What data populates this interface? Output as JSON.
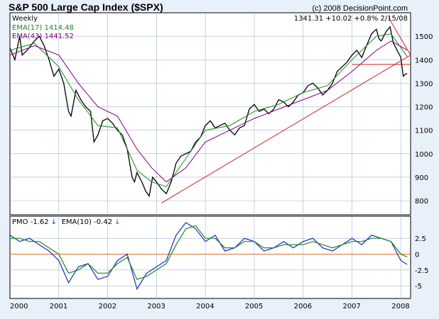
{
  "chart_data": [
    {
      "type": "line",
      "title": "S&P 500 Large Cap Index ($SPX)",
      "copyright": "(c) 2008 DecisionPoint.com",
      "period_label": "Weekly",
      "last_quote": "1341.31 +10.02 +0.8% 2/15/08",
      "legend": [
        {
          "name": "EMA(17) 1414.48",
          "color": "#1a8a1a"
        },
        {
          "name": "EMA(43) 1441.52",
          "color": "#800080"
        }
      ],
      "ylim": [
        740,
        1600
      ],
      "yticks": [
        800,
        900,
        1000,
        1100,
        1200,
        1300,
        1400,
        1500
      ],
      "xlim": [
        2000.0,
        2008.2
      ],
      "series": [
        {
          "name": "SPX",
          "color": "#000000",
          "x": [
            2000.0,
            2000.1,
            2000.2,
            2000.25,
            2000.35,
            2000.5,
            2000.6,
            2000.7,
            2000.8,
            2000.9,
            2001.0,
            2001.1,
            2001.2,
            2001.25,
            2001.35,
            2001.45,
            2001.55,
            2001.65,
            2001.72,
            2001.8,
            2001.9,
            2002.0,
            2002.1,
            2002.2,
            2002.3,
            2002.4,
            2002.5,
            2002.55,
            2002.6,
            2002.7,
            2002.78,
            2002.85,
            2002.92,
            2003.0,
            2003.1,
            2003.2,
            2003.3,
            2003.4,
            2003.5,
            2003.6,
            2003.7,
            2003.8,
            2003.9,
            2004.0,
            2004.1,
            2004.2,
            2004.3,
            2004.4,
            2004.5,
            2004.6,
            2004.7,
            2004.8,
            2004.9,
            2005.0,
            2005.1,
            2005.2,
            2005.3,
            2005.4,
            2005.5,
            2005.6,
            2005.7,
            2005.8,
            2005.9,
            2006.0,
            2006.1,
            2006.2,
            2006.3,
            2006.4,
            2006.5,
            2006.6,
            2006.7,
            2006.8,
            2006.9,
            2007.0,
            2007.1,
            2007.2,
            2007.3,
            2007.4,
            2007.5,
            2007.55,
            2007.6,
            2007.7,
            2007.78,
            2007.85,
            2007.9,
            2008.0,
            2008.05,
            2008.1,
            2008.13
          ],
          "y": [
            1450,
            1400,
            1500,
            1420,
            1440,
            1480,
            1500,
            1460,
            1400,
            1330,
            1360,
            1300,
            1180,
            1160,
            1270,
            1230,
            1200,
            1180,
            1050,
            1080,
            1140,
            1150,
            1130,
            1100,
            1080,
            1020,
            900,
            880,
            920,
            880,
            840,
            820,
            900,
            880,
            850,
            830,
            880,
            960,
            990,
            1000,
            1010,
            1050,
            1070,
            1120,
            1140,
            1110,
            1120,
            1130,
            1100,
            1080,
            1110,
            1120,
            1190,
            1210,
            1180,
            1190,
            1170,
            1190,
            1230,
            1220,
            1200,
            1220,
            1250,
            1260,
            1290,
            1300,
            1280,
            1250,
            1270,
            1300,
            1350,
            1370,
            1390,
            1420,
            1440,
            1410,
            1460,
            1510,
            1530,
            1490,
            1480,
            1520,
            1540,
            1470,
            1450,
            1410,
            1330,
            1340,
            1341
          ]
        },
        {
          "name": "EMA(17)",
          "color": "#1a8a1a",
          "x": [
            2000.0,
            2000.5,
            2001.0,
            2001.4,
            2001.8,
            2002.2,
            2002.6,
            2002.9,
            2003.2,
            2003.6,
            2004.0,
            2004.5,
            2005.0,
            2005.5,
            2006.0,
            2006.5,
            2007.0,
            2007.5,
            2007.8,
            2008.13
          ],
          "y": [
            1440,
            1470,
            1370,
            1230,
            1120,
            1110,
            930,
            880,
            860,
            980,
            1100,
            1120,
            1180,
            1210,
            1260,
            1290,
            1400,
            1500,
            1510,
            1414
          ]
        },
        {
          "name": "EMA(43)",
          "color": "#800080",
          "x": [
            2000.0,
            2000.5,
            2001.0,
            2001.4,
            2001.8,
            2002.2,
            2002.6,
            2002.9,
            2003.2,
            2003.6,
            2004.0,
            2004.5,
            2005.0,
            2005.5,
            2006.0,
            2006.5,
            2007.0,
            2007.5,
            2007.8,
            2008.13
          ],
          "y": [
            1420,
            1460,
            1420,
            1300,
            1200,
            1160,
            1020,
            940,
            880,
            940,
            1050,
            1100,
            1150,
            1190,
            1230,
            1270,
            1350,
            1440,
            1480,
            1441
          ]
        },
        {
          "name": "trendline-1",
          "color": "#d02020",
          "x": [
            2003.1,
            2008.2
          ],
          "y": [
            790,
            1420
          ]
        },
        {
          "name": "trendline-2",
          "color": "#d02020",
          "x": [
            2007.75,
            2008.2
          ],
          "y": [
            1580,
            1420
          ]
        },
        {
          "name": "trendline-3",
          "color": "#d02020",
          "x": [
            2007.0,
            2008.2
          ],
          "y": [
            1380,
            1380
          ]
        }
      ]
    },
    {
      "type": "line",
      "title": "PMO",
      "legend": [
        {
          "name": "PMO -1.62",
          "arrow": "↓",
          "color": "#1a2ad0",
          "arrow_color": "#1a2ad0"
        },
        {
          "name": "EMA(10) -0.42",
          "arrow": "↓",
          "color": "#1a8a1a",
          "arrow_color": "#1a8a1a"
        }
      ],
      "ylim": [
        -7,
        6
      ],
      "yticks": [
        -5.0,
        -2.5,
        0,
        2.5
      ],
      "zero_line_color": "#e07020",
      "x_tick_labels": [
        "2000",
        "2001",
        "2002",
        "2003",
        "2004",
        "2005",
        "2006",
        "2007",
        "2008"
      ],
      "xlim": [
        2000.0,
        2008.2
      ],
      "series": [
        {
          "name": "PMO",
          "color": "#1a2ad0",
          "x": [
            2000.0,
            2000.2,
            2000.4,
            2000.6,
            2000.8,
            2001.0,
            2001.2,
            2001.4,
            2001.6,
            2001.8,
            2002.0,
            2002.2,
            2002.4,
            2002.6,
            2002.8,
            2003.0,
            2003.2,
            2003.4,
            2003.6,
            2003.8,
            2004.0,
            2004.2,
            2004.4,
            2004.6,
            2004.8,
            2005.0,
            2005.2,
            2005.4,
            2005.6,
            2005.8,
            2006.0,
            2006.2,
            2006.4,
            2006.6,
            2006.8,
            2007.0,
            2007.2,
            2007.4,
            2007.6,
            2007.8,
            2008.0,
            2008.13
          ],
          "y": [
            3,
            2,
            2.5,
            1.5,
            0.5,
            -1,
            -4.5,
            -2,
            -1.5,
            -4,
            -3.5,
            -1,
            0,
            -5.5,
            -3,
            -2,
            -1,
            3,
            5,
            4,
            2,
            3,
            0.5,
            1,
            2.5,
            2,
            0.5,
            1,
            2,
            1,
            2,
            2.5,
            1,
            0.5,
            1.5,
            2.5,
            1.5,
            3,
            2.5,
            2,
            -1,
            -1.62
          ]
        },
        {
          "name": "EMA(10)",
          "color": "#1a8a1a",
          "x": [
            2000.0,
            2000.2,
            2000.4,
            2000.6,
            2000.8,
            2001.0,
            2001.2,
            2001.4,
            2001.6,
            2001.8,
            2002.0,
            2002.2,
            2002.4,
            2002.6,
            2002.8,
            2003.0,
            2003.2,
            2003.4,
            2003.6,
            2003.8,
            2004.0,
            2004.2,
            2004.4,
            2004.6,
            2004.8,
            2005.0,
            2005.2,
            2005.4,
            2005.6,
            2005.8,
            2006.0,
            2006.2,
            2006.4,
            2006.6,
            2006.8,
            2007.0,
            2007.2,
            2007.4,
            2007.6,
            2007.8,
            2008.0,
            2008.13
          ],
          "y": [
            2.5,
            2.5,
            2,
            2,
            1,
            0,
            -3,
            -2.5,
            -1.5,
            -3,
            -3,
            -1.5,
            -0.5,
            -4,
            -3.5,
            -2.5,
            -1.5,
            1.5,
            4,
            4.5,
            2.5,
            2.5,
            1,
            1,
            2,
            2,
            1,
            1,
            1.5,
            1.5,
            1.5,
            2,
            1.5,
            1,
            1.5,
            2,
            2,
            2.5,
            2.5,
            2,
            0,
            -0.42
          ]
        }
      ]
    }
  ]
}
